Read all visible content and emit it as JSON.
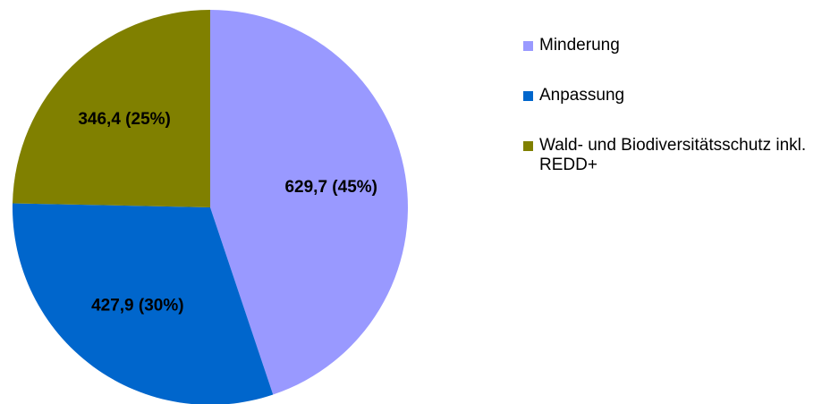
{
  "chart_data": {
    "type": "pie",
    "categories": [
      "Minderung",
      "Anpassung",
      "Wald- und Biodiversitätsschutz inkl. REDD+"
    ],
    "values": [
      629.7,
      427.9,
      346.4
    ],
    "value_labels": [
      "629,7 (45%)",
      "427,9 (30%)",
      "346,4 (25%)"
    ],
    "colors": [
      "#9999ff",
      "#0066cc",
      "#808000"
    ],
    "legend": "right"
  }
}
